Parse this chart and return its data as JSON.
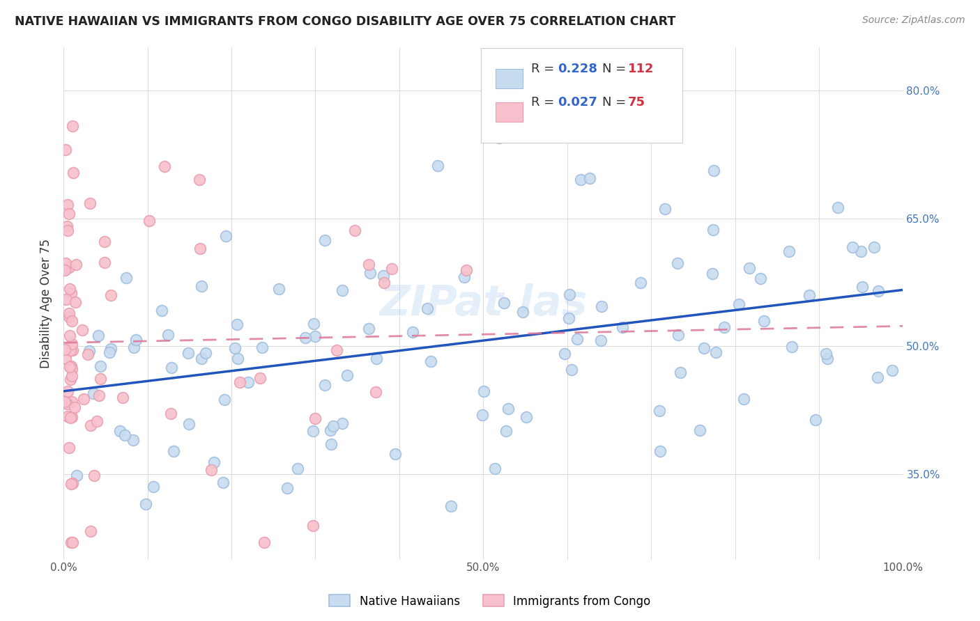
{
  "title": "NATIVE HAWAIIAN VS IMMIGRANTS FROM CONGO DISABILITY AGE OVER 75 CORRELATION CHART",
  "source": "Source: ZipAtlas.com",
  "ylabel_label": "Disability Age Over 75",
  "x_min": 0.0,
  "x_max": 1.0,
  "y_min": 0.25,
  "y_max": 0.85,
  "y_ticks": [
    0.35,
    0.5,
    0.65,
    0.8
  ],
  "y_tick_labels": [
    "35.0%",
    "50.0%",
    "65.0%",
    "80.0%"
  ],
  "x_tick_positions": [
    0.0,
    0.1,
    0.2,
    0.3,
    0.4,
    0.5,
    0.6,
    0.7,
    0.8,
    0.9,
    1.0
  ],
  "x_tick_labels": [
    "0.0%",
    "",
    "",
    "",
    "",
    "50.0%",
    "",
    "",
    "",
    "",
    "100.0%"
  ],
  "background_color": "#ffffff",
  "grid_color": "#dddddd",
  "blue_face_color": "#c8dcf0",
  "blue_edge_color": "#a0bede",
  "blue_line_color": "#2255bb",
  "pink_face_color": "#f8c0cc",
  "pink_edge_color": "#e8a0b0",
  "pink_line_color": "#dd7799",
  "r_blue": 0.228,
  "n_blue": 112,
  "r_pink": 0.027,
  "n_pink": 75,
  "seed": 42
}
